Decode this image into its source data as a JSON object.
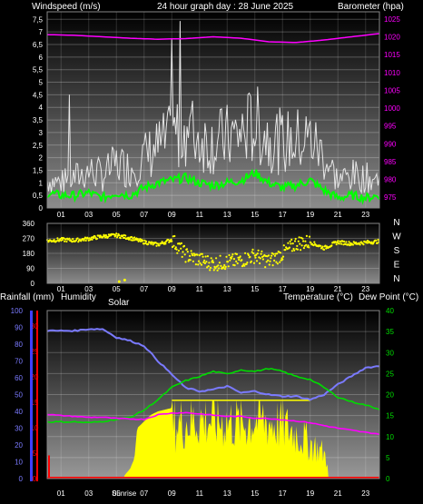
{
  "header": {
    "left": "Windspeed (m/s)",
    "center": "24 hour graph day : 28 June 2025",
    "right": "Barometer (hpa)"
  },
  "colors": {
    "wind_gust": "#e6e6e6",
    "wind_avg": "#00ff00",
    "barometer": "#ff00ff",
    "direction": "#ffff00",
    "humidity": "#7a7aff",
    "temperature": "#00dd00",
    "dew_point": "#ff00ff",
    "solar": "#ffff00",
    "rainfall": "#ff0000",
    "left_axis_bar": "#4040ff",
    "rain_axis_bar": "#ff0000"
  },
  "chart_data": [
    {
      "type": "line",
      "name": "wind",
      "x_ticks": [
        "01",
        "03",
        "05",
        "07",
        "09",
        "11",
        "13",
        "15",
        "17",
        "19",
        "21",
        "23"
      ],
      "y_left_ticks": [
        "0",
        "0,5",
        "1",
        "1,5",
        "2",
        "2,5",
        "3",
        "3,5",
        "4",
        "4,5",
        "5",
        "5,5",
        "6",
        "6,5",
        "7",
        "7,5"
      ],
      "y_right_ticks": [
        "975",
        "980",
        "985",
        "990",
        "995",
        "1000",
        "1005",
        "1010",
        "1015",
        "1020",
        "1025"
      ],
      "ylim_left": [
        0,
        7.8
      ],
      "ylim_right": [
        972,
        1027
      ],
      "barometer_hours": [
        0,
        2,
        4,
        6,
        8,
        10,
        12,
        14,
        16,
        18,
        20,
        22,
        24
      ],
      "barometer": [
        1020.6,
        1020.4,
        1020.0,
        1019.6,
        1019.3,
        1019.5,
        1020.0,
        1019.6,
        1018.6,
        1018.4,
        1019.1,
        1020.0,
        1020.9
      ],
      "wind_avg_hours": [
        0,
        1,
        2,
        3,
        4,
        5,
        6,
        7,
        8,
        9,
        10,
        11,
        12,
        13,
        14,
        15,
        16,
        17,
        18,
        19,
        20,
        21,
        22,
        23,
        24
      ],
      "wind_avg": [
        0.6,
        0.5,
        0.5,
        0.6,
        0.4,
        0.6,
        0.5,
        0.8,
        1.0,
        1.1,
        1.2,
        1.0,
        0.9,
        1.0,
        1.1,
        1.4,
        1.0,
        0.8,
        0.9,
        1.1,
        0.7,
        0.4,
        0.5,
        0.4,
        0.5
      ],
      "wind_gust_hours": [
        0,
        1,
        2,
        3,
        4,
        5,
        6,
        7,
        8,
        9,
        10,
        11,
        12,
        13,
        14,
        15,
        16,
        17,
        18,
        19,
        20,
        21,
        22,
        23,
        24
      ],
      "wind_gust": [
        1.2,
        1.1,
        1.3,
        1.6,
        1.4,
        1.9,
        1.7,
        2.2,
        2.6,
        3.0,
        3.5,
        3.0,
        2.8,
        3.0,
        3.2,
        3.6,
        3.1,
        2.8,
        2.9,
        3.0,
        2.2,
        1.2,
        1.4,
        1.3,
        1.2
      ]
    },
    {
      "type": "scatter",
      "name": "wind_direction",
      "x_ticks": [
        "01",
        "03",
        "05",
        "07",
        "09",
        "11",
        "13",
        "15",
        "17",
        "19",
        "21",
        "23"
      ],
      "y_ticks": [
        "360",
        "270",
        "180",
        "90",
        "0"
      ],
      "compass": [
        "N",
        "W",
        "S",
        "E",
        "N"
      ],
      "ylim": [
        0,
        360
      ],
      "hours": [
        0,
        1,
        2,
        3,
        4,
        5,
        6,
        7,
        8,
        9,
        10,
        11,
        12,
        13,
        14,
        15,
        16,
        17,
        18,
        19,
        20,
        21,
        22,
        23,
        24
      ],
      "degrees": [
        255,
        262,
        258,
        268,
        282,
        288,
        272,
        248,
        232,
        262,
        172,
        142,
        118,
        128,
        138,
        168,
        132,
        178,
        242,
        248,
        212,
        248,
        238,
        245,
        252
      ]
    },
    {
      "type": "area",
      "name": "climate",
      "labels": {
        "rainfall": "Rainfall (mm)",
        "humidity": "Humidity",
        "solar": "Solar",
        "temperature": "Temperature (°C)",
        "dew_point": "Dew Point (°C)",
        "sunrise": "Sunrise"
      },
      "x_ticks": [
        "01",
        "03",
        "05",
        "07",
        "09",
        "11",
        "13",
        "15",
        "17",
        "19",
        "21",
        "23"
      ],
      "humidity_ticks": [
        "0",
        "10",
        "20",
        "30",
        "40",
        "50",
        "60",
        "70",
        "80",
        "90",
        "100"
      ],
      "rain_ticks": [
        "0",
        "5",
        "10",
        "15",
        "20",
        "25",
        "30"
      ],
      "temp_ticks": [
        "0",
        "5",
        "10",
        "15",
        "20",
        "25",
        "30",
        "35",
        "40"
      ],
      "sunrise_hour": 5.55,
      "humidity_ylim": [
        0,
        100
      ],
      "temp_ylim": [
        0,
        40
      ],
      "hours": [
        0,
        1,
        2,
        3,
        4,
        5,
        6,
        7,
        8,
        9,
        10,
        11,
        12,
        13,
        14,
        15,
        16,
        17,
        18,
        19,
        20,
        21,
        22,
        23,
        24
      ],
      "humidity": [
        88,
        88,
        88,
        89,
        89,
        84,
        82,
        79,
        70,
        62,
        54,
        52,
        53,
        55,
        51,
        52,
        50,
        49,
        49,
        47,
        50,
        56,
        61,
        66,
        67
      ],
      "temperature": [
        13.5,
        13.5,
        13.5,
        13.3,
        13.6,
        14.1,
        14.6,
        16.3,
        18.8,
        21.7,
        23.3,
        24.3,
        25.5,
        24.9,
        25.9,
        25.5,
        26.2,
        25.5,
        24.3,
        23.6,
        21.7,
        19.4,
        18.3,
        17.5,
        16.5
      ],
      "dew_point": [
        15.3,
        15.0,
        14.8,
        14.6,
        14.6,
        14.3,
        14.2,
        14.1,
        15.2,
        15.6,
        15.7,
        15.4,
        15.1,
        14.8,
        14.8,
        14.4,
        14.3,
        14.0,
        13.7,
        13.3,
        12.6,
        12.0,
        11.5,
        11.0,
        10.6
      ],
      "solar_hours": [
        0,
        5.5,
        5.6,
        6.0,
        6.3,
        6.5,
        7.0,
        7.5,
        8.0,
        9.0,
        10.0,
        11.0,
        12.0,
        13.0,
        14.0,
        15.0,
        16.0,
        17.0,
        18.0,
        19.0,
        19.5,
        20.0,
        20.2,
        20.3,
        24
      ],
      "solar_pct": [
        0,
        0,
        2,
        6,
        12,
        30,
        34,
        38,
        40,
        42,
        45,
        47,
        46,
        45,
        43,
        47,
        45,
        42,
        36,
        28,
        24,
        20,
        14,
        0,
        0
      ],
      "rainfall": [
        0,
        0,
        0,
        0,
        0,
        0,
        0,
        0,
        0,
        0,
        0,
        0,
        0,
        0,
        0,
        0,
        0,
        0,
        0,
        0,
        0,
        0,
        0,
        0,
        0
      ],
      "rain_mark": 4.6
    }
  ]
}
